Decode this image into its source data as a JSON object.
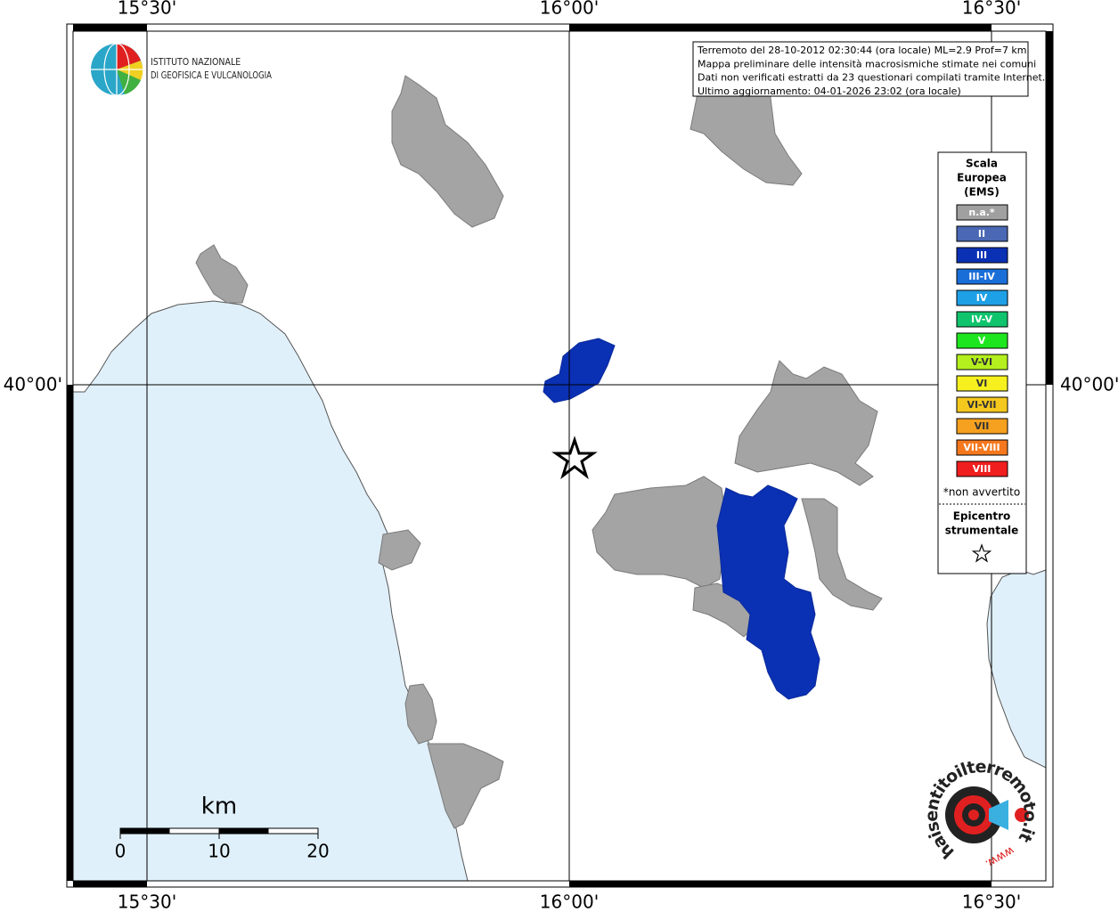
{
  "map": {
    "lon_labels": [
      "15°30'",
      "16°00'",
      "16°30'"
    ],
    "lat_labels": [
      "40°00'"
    ],
    "info": [
      "Terremoto del 28-10-2012 02:30:44 (ora locale) ML=2.9 Prof=7 km",
      "Mappa preliminare delle intensità macrosismiche stimate nei comuni",
      "Dati non verificati estratti da 23 questionari compilati tramite Internet.",
      "Ultimo aggiornamento: 04-01-2026 23:02 (ora locale)"
    ],
    "logo": [
      "ISTITUTO NAZIONALE",
      "DI GEOFISICA E VULCANOLOGIA"
    ],
    "legend": {
      "title": [
        "Scala",
        "Europea",
        "(EMS)"
      ],
      "items": [
        {
          "label": "n.a.*",
          "color": "#a0a0a0"
        },
        {
          "label": "II",
          "color": "#4a68b4"
        },
        {
          "label": "III",
          "color": "#0a30b4"
        },
        {
          "label": "III-IV",
          "color": "#1a6ed8"
        },
        {
          "label": "IV",
          "color": "#1ea0e6"
        },
        {
          "label": "IV-V",
          "color": "#10c46e"
        },
        {
          "label": "V",
          "color": "#1ee61e"
        },
        {
          "label": "V-VI",
          "color": "#b4f01e"
        },
        {
          "label": "VI",
          "color": "#f5f01e"
        },
        {
          "label": "VI-VII",
          "color": "#f5c81e"
        },
        {
          "label": "VII",
          "color": "#f5a01e"
        },
        {
          "label": "VII-VIII",
          "color": "#f5781e"
        },
        {
          "label": "VIII",
          "color": "#f01e1e"
        }
      ],
      "note": "*non avvertito",
      "epicenter": [
        "Epicentro",
        "strumentale"
      ]
    },
    "scale_bar": {
      "unit": "km",
      "labels": [
        "0",
        "10",
        "20"
      ]
    },
    "site_logo": {
      "prefix": "www.",
      "name": "haisentitoilterremoto.it"
    }
  }
}
